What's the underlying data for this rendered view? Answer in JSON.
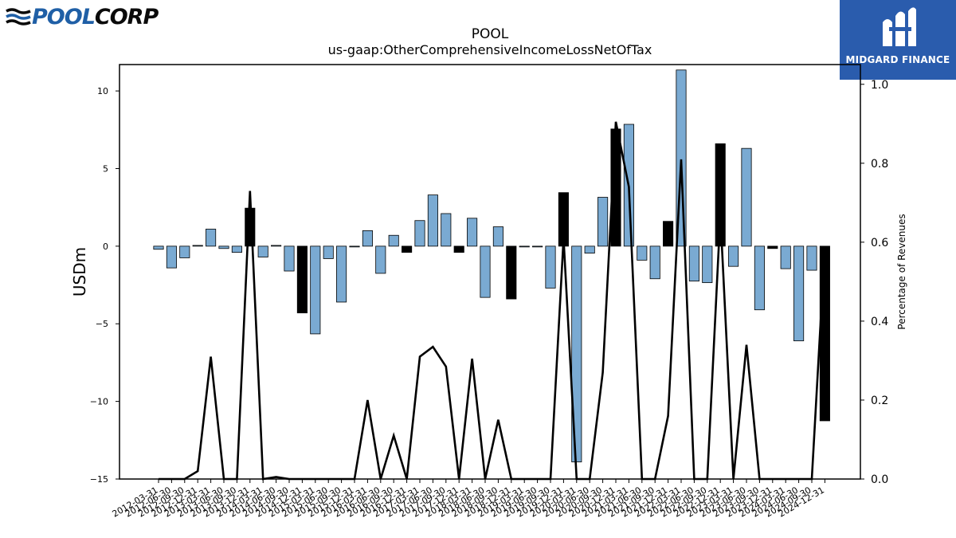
{
  "logos": {
    "left_brand_text": "POOLCORP",
    "right_brand_text": "MIDGARD FINANCE"
  },
  "chart_data": {
    "type": "bar",
    "title": "POOL",
    "subtitle": "us-gaap:OtherComprehensiveIncomeLossNetOfTax",
    "ylabel": "USDm",
    "y2label": "Percentage of Revenues",
    "ylim": [
      -15,
      11.7
    ],
    "y2lim": [
      0,
      1.05
    ],
    "yticks": [
      10,
      5,
      0,
      -5,
      -10,
      -15
    ],
    "yticklabels": [
      "10",
      "5",
      "0",
      "−5",
      "−10",
      "−15"
    ],
    "y2ticks": [
      0.0,
      0.2,
      0.4,
      0.6,
      0.8,
      1.0
    ],
    "y2ticklabels": [
      "0.0",
      "0.2",
      "0.4",
      "0.6",
      "0.8",
      "1.0"
    ],
    "colors": {
      "quarter_bar": "#7aaad2",
      "annual_bar": "#000000",
      "line": "#000000"
    },
    "categories": [
      "2012-03-31",
      "2012-06-30",
      "2012-09-30",
      "2012-12-31",
      "2013-03-31",
      "2013-06-30",
      "2013-09-30",
      "2013-12-31",
      "2014-03-31",
      "2014-06-30",
      "2014-09-30",
      "2014-12-31",
      "2015-03-31",
      "2015-06-30",
      "2015-09-30",
      "2015-12-31",
      "2016-03-31",
      "2016-06-30",
      "2016-09-30",
      "2016-12-31",
      "2017-03-31",
      "2017-06-30",
      "2017-09-30",
      "2017-12-31",
      "2018-03-31",
      "2018-06-30",
      "2018-09-30",
      "2018-12-31",
      "2019-03-31",
      "2019-06-30",
      "2019-09-30",
      "2019-12-31",
      "2020-03-31",
      "2020-06-30",
      "2020-09-30",
      "2020-12-31",
      "2021-03-31",
      "2021-06-30",
      "2021-09-30",
      "2021-12-31",
      "2022-03-31",
      "2022-06-30",
      "2022-09-30",
      "2022-12-31",
      "2023-03-31",
      "2023-06-30",
      "2023-09-30",
      "2023-12-31",
      "2024-03-31",
      "2024-06-30",
      "2024-09-30",
      "2024-12-31"
    ],
    "series": [
      {
        "values": [
          -0.2,
          -1.4,
          -0.75,
          0.05,
          1.1,
          -0.15,
          -0.4,
          2.45,
          -0.7,
          0.05,
          -1.6,
          -4.3,
          -5.65,
          -0.8,
          -3.6,
          -0.05,
          1.0,
          -1.75,
          0.7,
          -0.4,
          1.65,
          3.3,
          2.1,
          -0.4,
          1.8,
          -3.3,
          1.25,
          -3.4,
          -0.05,
          -0.05,
          -2.7,
          3.45,
          -13.9,
          -0.45,
          3.15,
          7.55,
          7.85,
          -0.9,
          -2.1,
          1.6,
          11.35,
          -2.25,
          -2.35,
          6.6,
          -1.3,
          6.3,
          -4.1,
          -0.15,
          -1.45,
          -6.1,
          -1.55,
          -11.25
        ],
        "annual": [
          false,
          false,
          false,
          false,
          false,
          false,
          false,
          true,
          false,
          false,
          false,
          true,
          false,
          false,
          false,
          false,
          false,
          false,
          false,
          true,
          false,
          false,
          false,
          true,
          false,
          false,
          false,
          true,
          false,
          false,
          false,
          true,
          false,
          false,
          false,
          true,
          false,
          false,
          false,
          true,
          false,
          false,
          false,
          true,
          false,
          false,
          false,
          true,
          false,
          false,
          false,
          true
        ]
      },
      {
        "axis": "right",
        "values": [
          0,
          0,
          0,
          0.02,
          0.31,
          0,
          0,
          0.73,
          0,
          0.005,
          0,
          0,
          0,
          0,
          0,
          0,
          0.2,
          0,
          0.11,
          0,
          0.31,
          0.335,
          0.285,
          0,
          0.305,
          0,
          0.15,
          0,
          0,
          0,
          0,
          0.61,
          0,
          0,
          0.27,
          0.905,
          0.74,
          0,
          0,
          0.16,
          0.81,
          0,
          0,
          0.67,
          0,
          0.34,
          0,
          0,
          0,
          0,
          0,
          0.59
        ]
      }
    ]
  }
}
